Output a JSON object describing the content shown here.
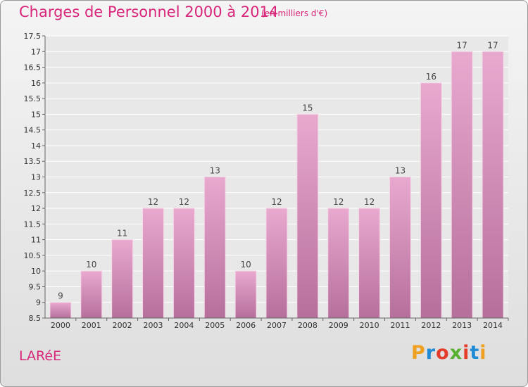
{
  "title": "Charges de Personnel 2000 à 2014",
  "subtitle": "(en milliers d'€)",
  "commune": "LARéE",
  "brand": {
    "logo_text": "Proxiti",
    "letter_colors": [
      "#f0a020",
      "#1f8ad6",
      "#e43c2a",
      "#58b030",
      "#e43c2a",
      "#1f8ad6",
      "#f0a020"
    ]
  },
  "colors": {
    "accent": "#d8267a",
    "bar_top": "#e9a9cf",
    "bar_bottom": "#b56f9b",
    "bar_stroke": "#f5d8e8"
  },
  "chart_data": {
    "type": "bar",
    "categories": [
      "2000",
      "2001",
      "2002",
      "2003",
      "2004",
      "2005",
      "2006",
      "2007",
      "2008",
      "2009",
      "2010",
      "2011",
      "2012",
      "2013",
      "2014"
    ],
    "values": [
      9,
      10,
      11,
      12,
      12,
      13,
      10,
      12,
      15,
      12,
      12,
      13,
      16,
      17,
      17
    ],
    "ylim": [
      8.5,
      17.5
    ],
    "yticks": [
      8.5,
      9,
      9.5,
      10,
      10.5,
      11,
      11.5,
      12,
      12.5,
      13,
      13.5,
      14,
      14.5,
      15,
      15.5,
      16,
      16.5,
      17,
      17.5
    ],
    "grid": true
  }
}
